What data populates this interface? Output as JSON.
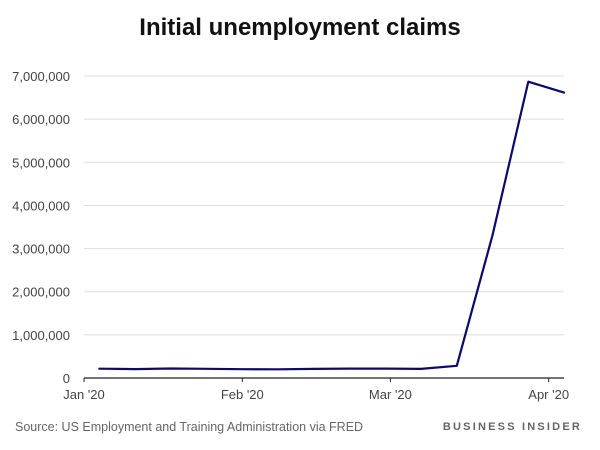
{
  "chart_data": {
    "type": "line",
    "title": "Initial unemployment claims",
    "xlabel": "",
    "ylabel": "",
    "x": [
      "2020-01-04",
      "2020-01-11",
      "2020-01-18",
      "2020-01-25",
      "2020-02-01",
      "2020-02-08",
      "2020-02-15",
      "2020-02-22",
      "2020-02-29",
      "2020-03-07",
      "2020-03-14",
      "2020-03-21",
      "2020-03-28",
      "2020-04-04"
    ],
    "series": [
      {
        "values": [
          215000,
          207000,
          220000,
          214000,
          203000,
          202000,
          211000,
          219000,
          217000,
          211000,
          282000,
          3307000,
          6867000,
          6615000
        ],
        "color": "#0a0a6b"
      }
    ],
    "xticks": [
      {
        "date": "2020-01-01",
        "label": "Jan '20"
      },
      {
        "date": "2020-02-01",
        "label": "Feb '20"
      },
      {
        "date": "2020-03-01",
        "label": "Mar '20"
      },
      {
        "date": "2020-04-01",
        "label": "Apr '20"
      }
    ],
    "yticks": [
      0,
      1000000,
      2000000,
      3000000,
      4000000,
      5000000,
      6000000,
      7000000
    ],
    "ytick_labels": [
      "0",
      "1,000,000",
      "2,000,000",
      "3,000,000",
      "4,000,000",
      "5,000,000",
      "6,000,000",
      "7,000,000"
    ],
    "ylim": [
      0,
      7000000
    ],
    "xlim": [
      "2020-01-01",
      "2020-04-04"
    ],
    "grid": true,
    "source": "Source: US Employment and Training Administration via FRED",
    "brand": "BUSINESS INSIDER"
  }
}
